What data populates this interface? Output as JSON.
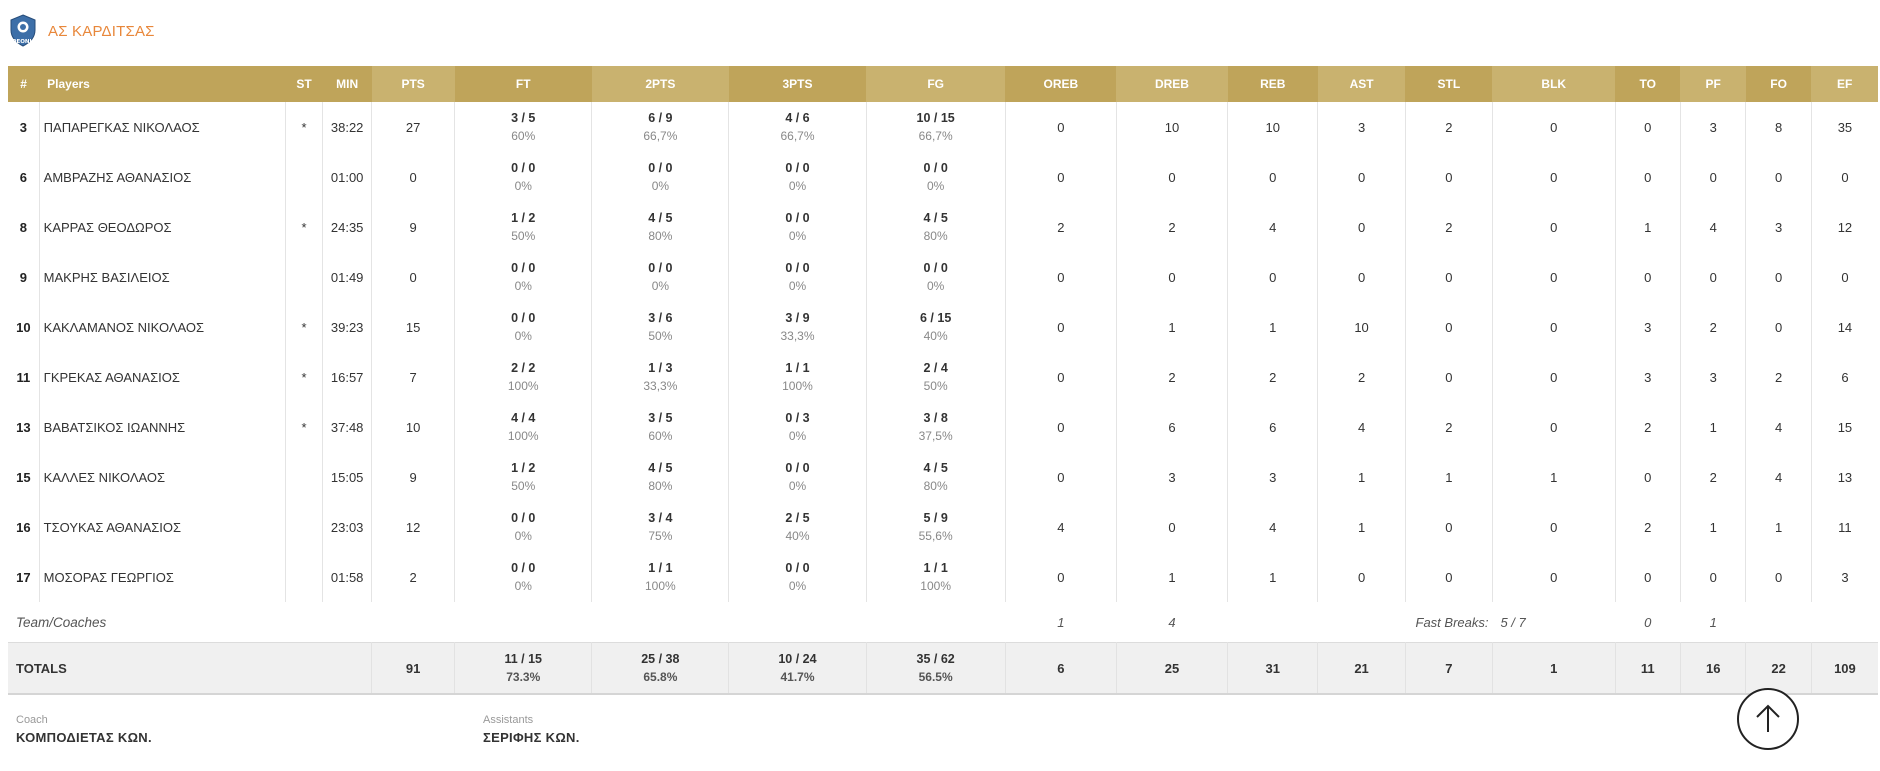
{
  "team": {
    "name": "ΑΣ ΚΑΡΔΙΤΣΑΣ",
    "logo_text": "ΘΕΟΝΗ",
    "logo_icon": "club-crest-icon"
  },
  "columns": [
    "#",
    "Players",
    "ST",
    "MIN",
    "PTS",
    "FT",
    "2PTS",
    "3PTS",
    "FG",
    "OREB",
    "DREB",
    "REB",
    "AST",
    "STL",
    "BLK",
    "TO",
    "PF",
    "FO",
    "EF"
  ],
  "players": [
    {
      "num": "3",
      "name": "ΠΑΠΑΡΕΓΚΑΣ ΝΙΚΟΛΑΟΣ",
      "st": "*",
      "min": "38:22",
      "pts": "27",
      "ft": "3 / 5",
      "ft_pct": "60%",
      "p2": "6 / 9",
      "p2_pct": "66,7%",
      "p3": "4 / 6",
      "p3_pct": "66,7%",
      "fg": "10 / 15",
      "fg_pct": "66,7%",
      "oreb": "0",
      "dreb": "10",
      "reb": "10",
      "ast": "3",
      "stl": "2",
      "blk": "0",
      "to": "0",
      "pf": "3",
      "fo": "8",
      "ef": "35"
    },
    {
      "num": "6",
      "name": "ΑΜΒΡΑΖΗΣ ΑΘΑΝΑΣΙΟΣ",
      "st": "",
      "min": "01:00",
      "pts": "0",
      "ft": "0 / 0",
      "ft_pct": "0%",
      "p2": "0 / 0",
      "p2_pct": "0%",
      "p3": "0 / 0",
      "p3_pct": "0%",
      "fg": "0 / 0",
      "fg_pct": "0%",
      "oreb": "0",
      "dreb": "0",
      "reb": "0",
      "ast": "0",
      "stl": "0",
      "blk": "0",
      "to": "0",
      "pf": "0",
      "fo": "0",
      "ef": "0"
    },
    {
      "num": "8",
      "name": "ΚΑΡΡΑΣ ΘΕΟΔΩΡΟΣ",
      "st": "*",
      "min": "24:35",
      "pts": "9",
      "ft": "1 / 2",
      "ft_pct": "50%",
      "p2": "4 / 5",
      "p2_pct": "80%",
      "p3": "0 / 0",
      "p3_pct": "0%",
      "fg": "4 / 5",
      "fg_pct": "80%",
      "oreb": "2",
      "dreb": "2",
      "reb": "4",
      "ast": "0",
      "stl": "2",
      "blk": "0",
      "to": "1",
      "pf": "4",
      "fo": "3",
      "ef": "12"
    },
    {
      "num": "9",
      "name": "ΜΑΚΡΗΣ ΒΑΣΙΛΕΙΟΣ",
      "st": "",
      "min": "01:49",
      "pts": "0",
      "ft": "0 / 0",
      "ft_pct": "0%",
      "p2": "0 / 0",
      "p2_pct": "0%",
      "p3": "0 / 0",
      "p3_pct": "0%",
      "fg": "0 / 0",
      "fg_pct": "0%",
      "oreb": "0",
      "dreb": "0",
      "reb": "0",
      "ast": "0",
      "stl": "0",
      "blk": "0",
      "to": "0",
      "pf": "0",
      "fo": "0",
      "ef": "0"
    },
    {
      "num": "10",
      "name": "ΚΑΚΛΑΜΑΝΟΣ ΝΙΚΟΛΑΟΣ",
      "st": "*",
      "min": "39:23",
      "pts": "15",
      "ft": "0 / 0",
      "ft_pct": "0%",
      "p2": "3 / 6",
      "p2_pct": "50%",
      "p3": "3 / 9",
      "p3_pct": "33,3%",
      "fg": "6 / 15",
      "fg_pct": "40%",
      "oreb": "0",
      "dreb": "1",
      "reb": "1",
      "ast": "10",
      "stl": "0",
      "blk": "0",
      "to": "3",
      "pf": "2",
      "fo": "0",
      "ef": "14"
    },
    {
      "num": "11",
      "name": "ΓΚΡΕΚΑΣ ΑΘΑΝΑΣΙΟΣ",
      "st": "*",
      "min": "16:57",
      "pts": "7",
      "ft": "2 / 2",
      "ft_pct": "100%",
      "p2": "1 / 3",
      "p2_pct": "33,3%",
      "p3": "1 / 1",
      "p3_pct": "100%",
      "fg": "2 / 4",
      "fg_pct": "50%",
      "oreb": "0",
      "dreb": "2",
      "reb": "2",
      "ast": "2",
      "stl": "0",
      "blk": "0",
      "to": "3",
      "pf": "3",
      "fo": "2",
      "ef": "6"
    },
    {
      "num": "13",
      "name": "ΒΑΒΑΤΣΙΚΟΣ ΙΩΑΝΝΗΣ",
      "st": "*",
      "min": "37:48",
      "pts": "10",
      "ft": "4 / 4",
      "ft_pct": "100%",
      "p2": "3 / 5",
      "p2_pct": "60%",
      "p3": "0 / 3",
      "p3_pct": "0%",
      "fg": "3 / 8",
      "fg_pct": "37,5%",
      "oreb": "0",
      "dreb": "6",
      "reb": "6",
      "ast": "4",
      "stl": "2",
      "blk": "0",
      "to": "2",
      "pf": "1",
      "fo": "4",
      "ef": "15"
    },
    {
      "num": "15",
      "name": "ΚΑΛΛΕΣ ΝΙΚΟΛΑΟΣ",
      "st": "",
      "min": "15:05",
      "pts": "9",
      "ft": "1 / 2",
      "ft_pct": "50%",
      "p2": "4 / 5",
      "p2_pct": "80%",
      "p3": "0 / 0",
      "p3_pct": "0%",
      "fg": "4 / 5",
      "fg_pct": "80%",
      "oreb": "0",
      "dreb": "3",
      "reb": "3",
      "ast": "1",
      "stl": "1",
      "blk": "1",
      "to": "0",
      "pf": "2",
      "fo": "4",
      "ef": "13"
    },
    {
      "num": "16",
      "name": "ΤΣΟΥΚΑΣ ΑΘΑΝΑΣΙΟΣ",
      "st": "",
      "min": "23:03",
      "pts": "12",
      "ft": "0 / 0",
      "ft_pct": "0%",
      "p2": "3 / 4",
      "p2_pct": "75%",
      "p3": "2 / 5",
      "p3_pct": "40%",
      "fg": "5 / 9",
      "fg_pct": "55,6%",
      "oreb": "4",
      "dreb": "0",
      "reb": "4",
      "ast": "1",
      "stl": "0",
      "blk": "0",
      "to": "2",
      "pf": "1",
      "fo": "1",
      "ef": "11"
    },
    {
      "num": "17",
      "name": "ΜΟΣΟΡΑΣ ΓΕΩΡΓΙΟΣ",
      "st": "",
      "min": "01:58",
      "pts": "2",
      "ft": "0 / 0",
      "ft_pct": "0%",
      "p2": "1 / 1",
      "p2_pct": "100%",
      "p3": "0 / 0",
      "p3_pct": "0%",
      "fg": "1 / 1",
      "fg_pct": "100%",
      "oreb": "0",
      "dreb": "1",
      "reb": "1",
      "ast": "0",
      "stl": "0",
      "blk": "0",
      "to": "0",
      "pf": "0",
      "fo": "0",
      "ef": "3"
    }
  ],
  "team_row": {
    "label": "Team/Coaches",
    "oreb": "1",
    "dreb": "4",
    "fast_breaks_label": "Fast Breaks:",
    "fast_breaks_value": "5 / 7",
    "to": "0",
    "pf": "1"
  },
  "totals": {
    "label": "TOTALS",
    "pts": "91",
    "ft": "11 / 15",
    "ft_pct": "73.3%",
    "p2": "25 / 38",
    "p2_pct": "65.8%",
    "p3": "10 / 24",
    "p3_pct": "41.7%",
    "fg": "35 / 62",
    "fg_pct": "56.5%",
    "oreb": "6",
    "dreb": "25",
    "reb": "31",
    "ast": "21",
    "stl": "7",
    "blk": "1",
    "to": "11",
    "pf": "16",
    "fo": "22",
    "ef": "109"
  },
  "staff": {
    "coach_label": "Coach",
    "coach_name": "ΚΟΜΠΟΔΙΕΤΑΣ ΚΩΝ.",
    "assistants_label": "Assistants",
    "assistants_name": "ΣΕΡΙΦΗΣ ΚΩΝ."
  },
  "scroll_top_icon": "arrow-up-icon",
  "colors": {
    "header_dark": "#bfa45a",
    "header_light": "#c9b26f",
    "team_name": "#e8873a",
    "totals_bg": "#f0f0f0"
  }
}
